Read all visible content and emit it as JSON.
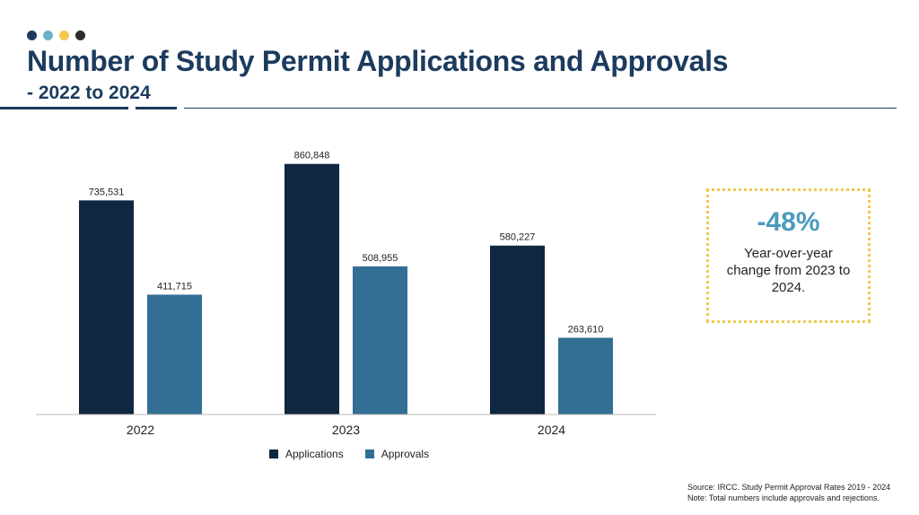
{
  "header": {
    "title": "Number of Study Permit Applications and Approvals",
    "subtitle": "- 2022 to 2024",
    "dot_colors": [
      "#1c3b5e",
      "#6bb0c9",
      "#f2c94c",
      "#2c2c2c"
    ]
  },
  "chart_data": {
    "type": "bar",
    "categories": [
      "2022",
      "2023",
      "2024"
    ],
    "series": [
      {
        "name": "Applications",
        "color": "#0f2740",
        "values": [
          735531,
          860848,
          580227
        ],
        "labels": [
          "735,531",
          "860,848",
          "580,227"
        ]
      },
      {
        "name": "Approvals",
        "color": "#336f94",
        "values": [
          411715,
          508955,
          263610
        ],
        "labels": [
          "411,715",
          "508,955",
          "263,610"
        ]
      }
    ],
    "ylim": [
      0,
      900000
    ],
    "grid": false,
    "legend": "bottom-center"
  },
  "callout": {
    "value": "-48%",
    "text": "Year-over-year change from 2023 to 2024.",
    "border_color": "#f2c94c",
    "value_color": "#4a9bbd"
  },
  "footer": {
    "source": "Source: IRCC. Study Permit Approval Rates 2019 - 2024",
    "note": "Note: Total numbers include approvals and rejections."
  }
}
